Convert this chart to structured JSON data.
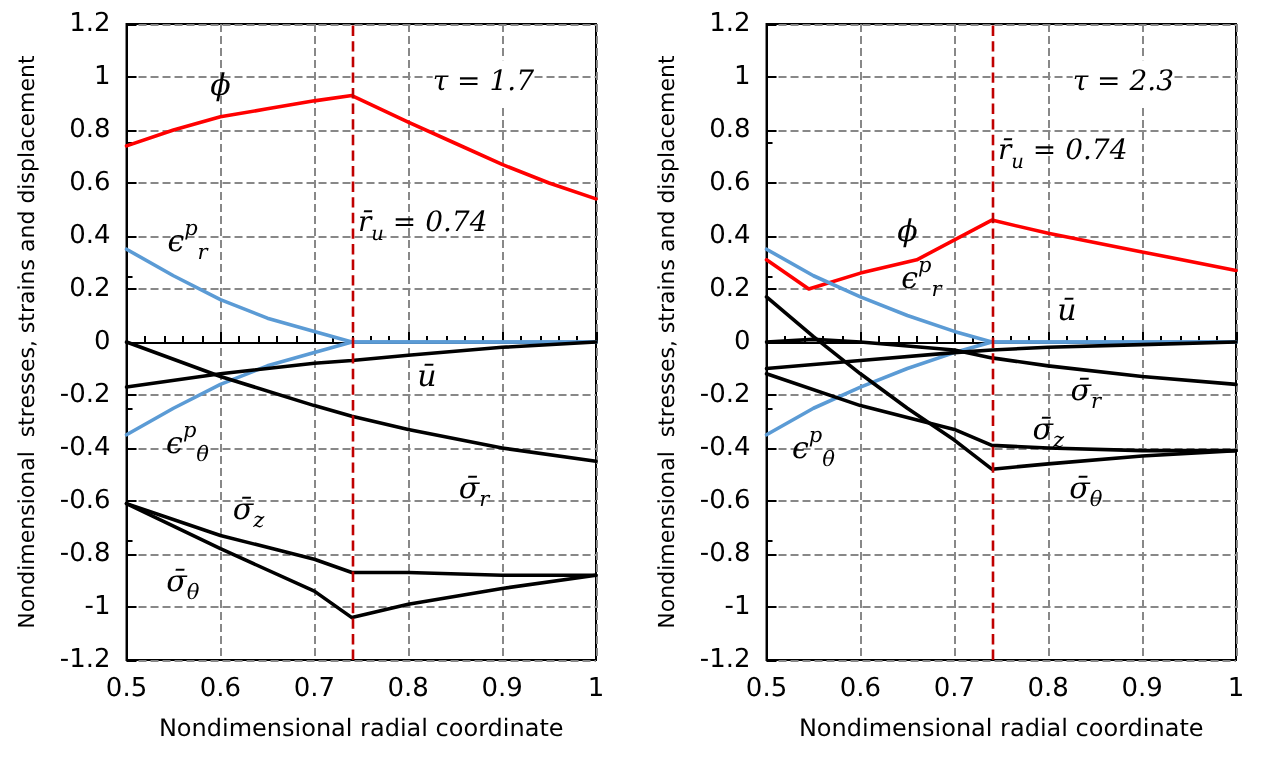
{
  "chart_data": [
    {
      "type": "line",
      "xlabel": "Nondimensional radial coordinate",
      "ylabel": "Nondimensional  stresses, strains and displacement",
      "annotations": [
        "τ = 1.7"
      ],
      "xlim": [
        0.5,
        1
      ],
      "xticks": [
        0.5,
        0.6,
        0.7,
        0.8,
        0.9,
        1
      ],
      "ylim": [
        -1.2,
        1.2
      ],
      "yticks": [
        -1.2,
        -1,
        -0.8,
        -0.6,
        -0.4,
        -0.2,
        0,
        0.2,
        0.4,
        0.6,
        0.8,
        1,
        1.2
      ],
      "grid": true,
      "marker": "none",
      "line_style": "solid",
      "ref_lines": [
        {
          "axis": "x",
          "value": 0.74,
          "label": "r̄$_{u}$ = 0.74",
          "color": "#c00000",
          "line_style": "dashed"
        }
      ],
      "series": [
        {
          "name": "ϕ",
          "color": "#ff0000",
          "x": [
            0.5,
            0.55,
            0.6,
            0.65,
            0.7,
            0.74,
            0.8,
            0.85,
            0.9,
            0.95,
            1
          ],
          "values": [
            0.74,
            0.8,
            0.85,
            0.88,
            0.91,
            0.93,
            0.83,
            0.75,
            0.67,
            0.6,
            0.54
          ]
        },
        {
          "name": "ϵ$^{p}$$_{r}$",
          "color": "#5b9bd5",
          "x": [
            0.5,
            0.55,
            0.6,
            0.65,
            0.7,
            0.74,
            0.8,
            1
          ],
          "values": [
            0.35,
            0.25,
            0.16,
            0.09,
            0.04,
            0,
            0,
            0
          ]
        },
        {
          "name": "ϵ$^{p}$$_{θ}$",
          "color": "#5b9bd5",
          "x": [
            0.5,
            0.55,
            0.6,
            0.65,
            0.7,
            0.74,
            0.8,
            1
          ],
          "values": [
            -0.35,
            -0.25,
            -0.16,
            -0.09,
            -0.04,
            0,
            0,
            0
          ]
        },
        {
          "name": "ū",
          "color": "#000000",
          "x": [
            0.5,
            0.6,
            0.7,
            0.74,
            0.8,
            0.9,
            1
          ],
          "values": [
            -0.17,
            -0.12,
            -0.08,
            -0.07,
            -0.05,
            -0.02,
            0
          ]
        },
        {
          "name": "σ̄$_{r}$",
          "color": "#000000",
          "x": [
            0.5,
            0.6,
            0.7,
            0.74,
            0.8,
            0.9,
            1
          ],
          "values": [
            0,
            -0.13,
            -0.24,
            -0.28,
            -0.33,
            -0.4,
            -0.45
          ]
        },
        {
          "name": "σ̄$_{z}$",
          "color": "#000000",
          "x": [
            0.5,
            0.6,
            0.7,
            0.74,
            0.8,
            0.9,
            1
          ],
          "values": [
            -0.61,
            -0.73,
            -0.82,
            -0.87,
            -0.87,
            -0.88,
            -0.88
          ]
        },
        {
          "name": "σ̄$_{θ}$",
          "color": "#000000",
          "x": [
            0.5,
            0.6,
            0.7,
            0.74,
            0.8,
            0.9,
            1
          ],
          "values": [
            -0.61,
            -0.78,
            -0.94,
            -1.04,
            -0.99,
            -0.93,
            -0.88
          ]
        }
      ]
    },
    {
      "type": "line",
      "xlabel": "Nondimensional radial coordinate",
      "ylabel": "Nondimensional  stresses, strains and displacement",
      "annotations": [
        "τ = 2.3"
      ],
      "xlim": [
        0.5,
        1
      ],
      "xticks": [
        0.5,
        0.6,
        0.7,
        0.8,
        0.9,
        1
      ],
      "ylim": [
        -1.2,
        1.2
      ],
      "yticks": [
        -1.2,
        -1,
        -0.8,
        -0.6,
        -0.4,
        -0.2,
        0,
        0.2,
        0.4,
        0.6,
        0.8,
        1,
        1.2
      ],
      "grid": true,
      "marker": "none",
      "line_style": "solid",
      "ref_lines": [
        {
          "axis": "x",
          "value": 0.74,
          "label": "r̄$_{u}$ = 0.74",
          "color": "#c00000",
          "line_style": "dashed"
        }
      ],
      "series": [
        {
          "name": "ϕ",
          "color": "#ff0000",
          "x": [
            0.5,
            0.545,
            0.6,
            0.66,
            0.74,
            0.8,
            0.9,
            1
          ],
          "values": [
            0.31,
            0.2,
            0.26,
            0.31,
            0.46,
            0.41,
            0.34,
            0.27
          ]
        },
        {
          "name": "ϵ$^{p}$$_{r}$",
          "color": "#5b9bd5",
          "x": [
            0.5,
            0.55,
            0.6,
            0.65,
            0.7,
            0.74,
            0.8,
            1
          ],
          "values": [
            0.35,
            0.25,
            0.17,
            0.1,
            0.04,
            0,
            0,
            0
          ]
        },
        {
          "name": "ϵ$^{p}$$_{θ}$",
          "color": "#5b9bd5",
          "x": [
            0.5,
            0.55,
            0.6,
            0.65,
            0.7,
            0.74,
            0.8,
            1
          ],
          "values": [
            -0.35,
            -0.25,
            -0.17,
            -0.1,
            -0.04,
            0,
            0,
            0
          ]
        },
        {
          "name": "ū",
          "color": "#000000",
          "x": [
            0.5,
            0.6,
            0.7,
            0.74,
            0.8,
            0.9,
            1
          ],
          "values": [
            -0.1,
            -0.07,
            -0.04,
            -0.03,
            -0.02,
            -0.01,
            0
          ]
        },
        {
          "name": "σ̄$_{r}$",
          "color": "#000000",
          "x": [
            0.5,
            0.55,
            0.6,
            0.7,
            0.74,
            0.8,
            0.9,
            1
          ],
          "values": [
            0,
            0.01,
            0,
            -0.03,
            -0.06,
            -0.09,
            -0.13,
            -0.16
          ]
        },
        {
          "name": "σ̄$_{z}$",
          "color": "#000000",
          "x": [
            0.5,
            0.6,
            0.7,
            0.74,
            0.8,
            0.9,
            1
          ],
          "values": [
            -0.12,
            -0.24,
            -0.33,
            -0.39,
            -0.4,
            -0.41,
            -0.41
          ]
        },
        {
          "name": "σ̄$_{θ}$",
          "color": "#000000",
          "x": [
            0.5,
            0.55,
            0.6,
            0.65,
            0.7,
            0.74,
            0.8,
            0.9,
            1
          ],
          "values": [
            0.17,
            0.02,
            -0.12,
            -0.25,
            -0.37,
            -0.48,
            -0.46,
            -0.43,
            -0.41
          ]
        }
      ]
    }
  ]
}
